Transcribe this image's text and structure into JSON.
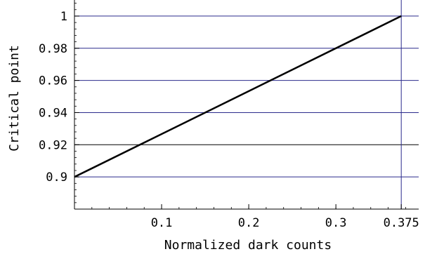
{
  "chart_data": {
    "type": "line",
    "title": "",
    "xlabel": "Normalized dark counts",
    "ylabel": "Critical point",
    "xlim": [
      0,
      0.395
    ],
    "ylim": [
      0.88,
      1.01
    ],
    "x_ticks": [
      {
        "value": 0.1,
        "label": "0.1"
      },
      {
        "value": 0.2,
        "label": "0.2"
      },
      {
        "value": 0.3,
        "label": "0.3"
      },
      {
        "value": 0.375,
        "label": "0.375"
      }
    ],
    "y_ticks": [
      {
        "value": 0.9,
        "label": "0.9"
      },
      {
        "value": 0.92,
        "label": "0.92"
      },
      {
        "value": 0.94,
        "label": "0.94"
      },
      {
        "value": 0.96,
        "label": "0.96"
      },
      {
        "value": 0.98,
        "label": "0.98"
      },
      {
        "value": 1.0,
        "label": "1"
      }
    ],
    "grid_y": [
      {
        "value": 0.9,
        "color": "#2a2a8c"
      },
      {
        "value": 0.92,
        "color": "#000000"
      },
      {
        "value": 0.94,
        "color": "#2a2a8c"
      },
      {
        "value": 0.96,
        "color": "#2a2a8c"
      },
      {
        "value": 0.98,
        "color": "#2a2a8c"
      },
      {
        "value": 1.0,
        "color": "#2a2a8c"
      }
    ],
    "grid_x": [
      {
        "value": 0.375,
        "color": "#2a2a8c"
      }
    ],
    "series": [
      {
        "color": "#000000",
        "x": [
          0,
          0.375
        ],
        "y": [
          0.9,
          1.0
        ]
      }
    ]
  }
}
